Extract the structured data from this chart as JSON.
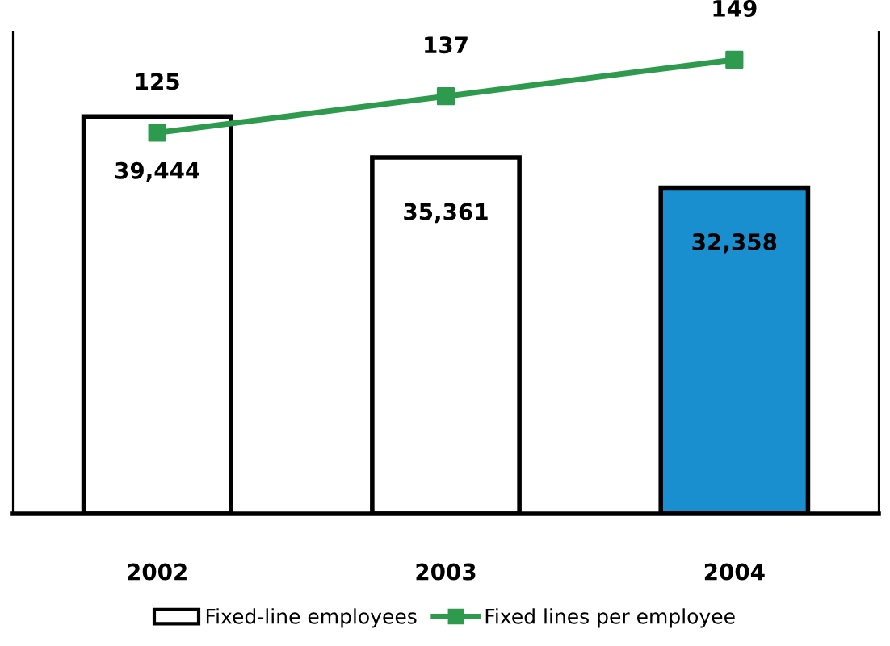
{
  "chart_data": {
    "type": "bar",
    "categories": [
      "2002",
      "2003",
      "2004"
    ],
    "series": [
      {
        "name": "Fixed-line employees",
        "colors": [
          "#ffffff",
          "#ffffff",
          "#1a8fd0"
        ],
        "values": [
          39444,
          35361,
          32358
        ],
        "value_labels": [
          "39,444",
          "35,361",
          "32,358"
        ]
      },
      {
        "name": "Fixed lines per employee",
        "type": "line",
        "axis": "y2",
        "color": "#2e9a4e",
        "values": [
          125,
          137,
          149
        ],
        "value_labels": [
          "125",
          "137",
          "149"
        ]
      }
    ],
    "ylim": [
      0,
      47800
    ],
    "y2lim": [
      0,
      158
    ],
    "tick_labels": "x",
    "legend": "bottom",
    "marker": "square",
    "line_style": "solid",
    "grid": false
  }
}
